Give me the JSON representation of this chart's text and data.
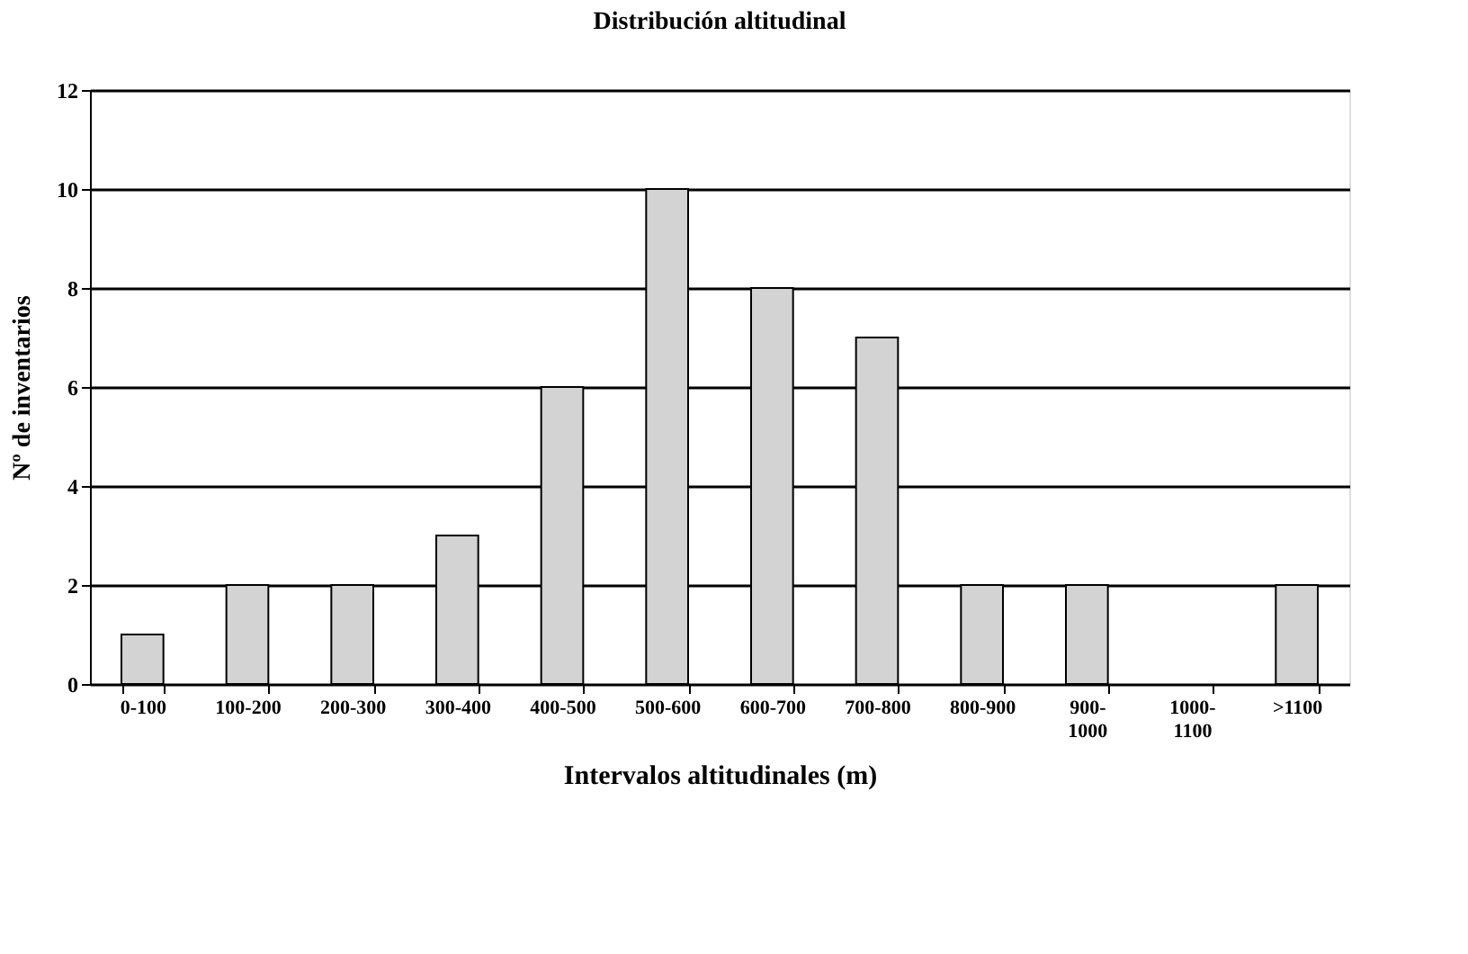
{
  "chart_data": {
    "type": "bar",
    "title": "Distribución altitudinal",
    "xlabel": "Intervalos altitudinales (m)",
    "ylabel": "Nº de inventarios",
    "categories": [
      "0-100",
      "100-200",
      "200-300",
      "300-400",
      "400-500",
      "500-600",
      "600-700",
      "700-800",
      "800-900",
      "900-1000",
      "1000-1100",
      ">1100"
    ],
    "values": [
      1,
      2,
      2,
      3,
      6,
      10,
      8,
      7,
      2,
      2,
      0,
      2
    ],
    "color": "#d3d3d3",
    "ylim": [
      0,
      12
    ],
    "yticks": [
      0,
      2,
      4,
      6,
      8,
      10,
      12
    ],
    "grid": "y"
  }
}
